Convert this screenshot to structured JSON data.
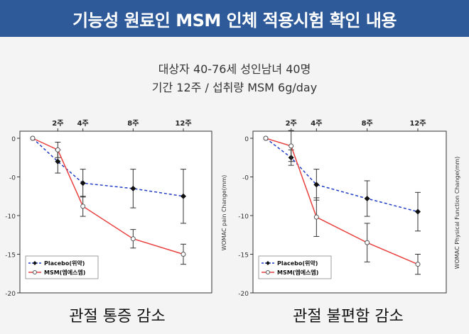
{
  "header": {
    "title": "기능성 원료인 MSM 인체 적용시험 확인 내용"
  },
  "study": {
    "subjects": "대상자 40-76세 성인남녀 40명",
    "period": "기간 12주 / 섭취량 MSM 6g/day"
  },
  "colors": {
    "banner": "#2e5a9a",
    "placebo": "#1f3cc6",
    "msm": "#e8413f"
  },
  "chart_data": [
    {
      "type": "line",
      "caption": "관절 통증 감소",
      "ylabel": "WOMAC pain Change(mm)",
      "x_ticks": [
        "2주",
        "4주",
        "8주",
        "12주"
      ],
      "x": [
        0,
        2,
        4,
        8,
        12
      ],
      "y_ticks": [
        "0",
        "-0",
        "-10",
        "-15",
        "-20"
      ],
      "ylim": [
        -20,
        0
      ],
      "legend": [
        "Placebo(위약)",
        "MSM(엠에스엠)"
      ],
      "series": [
        {
          "name": "Placebo(위약)",
          "values": [
            0,
            -3,
            -5.8,
            -6.5,
            -7.5
          ],
          "err": [
            0,
            1.5,
            1.8,
            2.5,
            3.5
          ]
        },
        {
          "name": "MSM(엠에스엠)",
          "values": [
            0,
            -1.5,
            -8.8,
            -13,
            -15
          ],
          "err": [
            0,
            1,
            1.3,
            1.2,
            1.3
          ]
        }
      ]
    },
    {
      "type": "line",
      "caption": "관절 불편함 감소",
      "ylabel": "WOMAC Physical Function Change(mm)",
      "x_ticks": [
        "2주",
        "4주",
        "8주",
        "12주"
      ],
      "x": [
        0,
        2,
        4,
        8,
        12
      ],
      "y_ticks": [
        "0",
        "-0",
        "-10",
        "-15",
        "-20"
      ],
      "ylim": [
        -20,
        0
      ],
      "legend": [
        "Placebo(위약)",
        "MSM(엠에스엠)"
      ],
      "series": [
        {
          "name": "Placebo(위약)",
          "values": [
            0,
            -2.5,
            -6,
            -7.8,
            -9.5
          ],
          "err": [
            0,
            1,
            2,
            2.3,
            2.5
          ]
        },
        {
          "name": "MSM(엠에스엠)",
          "values": [
            0,
            -1,
            -10.2,
            -13.5,
            -16.3
          ],
          "err": [
            0,
            2,
            2.5,
            2.5,
            1.3
          ]
        }
      ]
    }
  ]
}
